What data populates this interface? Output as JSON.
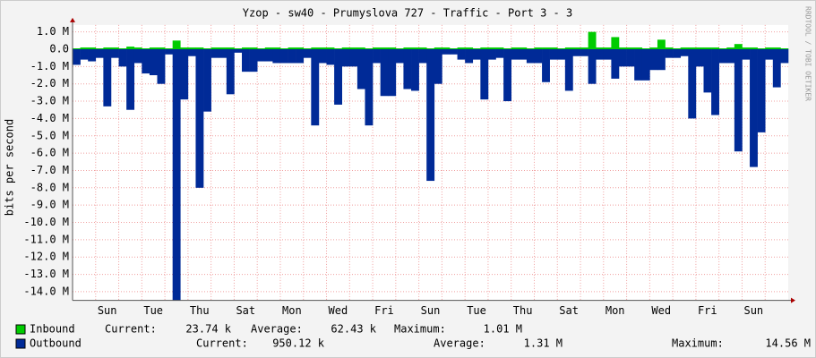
{
  "chart_data": {
    "type": "area",
    "title": "Yzop - sw40 - Prumyslova 727 - Traffic - Port  3 - 3",
    "y_label": "bits per second",
    "side_label": "RRDTOOL / TOBI OETIKER",
    "categories": [
      null,
      null,
      null,
      null,
      "Sun",
      null,
      null,
      null,
      null,
      null,
      "Tue",
      null,
      null,
      null,
      null,
      null,
      "Thu",
      null,
      null,
      null,
      null,
      null,
      "Sat",
      null,
      null,
      null,
      null,
      null,
      "Mon",
      null,
      null,
      null,
      null,
      null,
      "Wed",
      null,
      null,
      null,
      null,
      null,
      "Fri",
      null,
      null,
      null,
      null,
      null,
      "Sun",
      null,
      null,
      null,
      null,
      null,
      "Tue",
      null,
      null,
      null,
      null,
      null,
      "Thu",
      null,
      null,
      null,
      null,
      null,
      "Sat",
      null,
      null,
      null,
      null,
      null,
      "Mon",
      null,
      null,
      null,
      null,
      null,
      "Wed",
      null,
      null,
      null,
      null,
      null,
      "Fri",
      null,
      null,
      null,
      null,
      null,
      "Sun",
      null,
      null,
      null,
      null
    ],
    "series": [
      {
        "name": "Inbound",
        "color": "#00cc00",
        "stats": [
          {
            "label": "Current:",
            "value": "23.74 k"
          },
          {
            "label": "Average:",
            "value": "62.43 k"
          },
          {
            "label": "Maximum:",
            "value": "1.01 M"
          }
        ],
        "values": [
          0.05,
          0.1,
          0.1,
          0.05,
          0.1,
          0.1,
          0.05,
          0.15,
          0.1,
          0.05,
          0.1,
          0.1,
          0.05,
          0.5,
          0.1,
          0.1,
          0.1,
          0.05,
          0.1,
          0.1,
          0.1,
          0.05,
          0.1,
          0.1,
          0.05,
          0.1,
          0.1,
          0.05,
          0.1,
          0.1,
          0.05,
          0.1,
          0.1,
          0.1,
          0.05,
          0.1,
          0.1,
          0.1,
          0.05,
          0.1,
          0.1,
          0.1,
          0.05,
          0.1,
          0.1,
          0.1,
          0.05,
          0.1,
          0.1,
          0.05,
          0.1,
          0.1,
          0.05,
          0.1,
          0.1,
          0.1,
          0.05,
          0.1,
          0.1,
          0.05,
          0.1,
          0.1,
          0.1,
          0.05,
          0.1,
          0.1,
          0.1,
          1.0,
          0.1,
          0.1,
          0.7,
          0.1,
          0.1,
          0.1,
          0.05,
          0.1,
          0.55,
          0.1,
          0.05,
          0.1,
          0.1,
          0.1,
          0.1,
          0.1,
          0.05,
          0.1,
          0.3,
          0.1,
          0.1,
          0.05,
          0.1,
          0.1,
          0.05
        ]
      },
      {
        "name": "Outbound",
        "color": "#002a97",
        "stats": [
          {
            "label": "Current:",
            "value": "950.12 k"
          },
          {
            "label": "Average:",
            "value": "1.31 M"
          },
          {
            "label": "Maximum:",
            "value": "14.56 M"
          }
        ],
        "values": [
          -0.9,
          -0.6,
          -0.7,
          -0.5,
          -3.3,
          -0.5,
          -1.0,
          -3.5,
          -0.8,
          -1.4,
          -1.5,
          -2.0,
          -0.3,
          -14.5,
          -2.9,
          -0.4,
          -8.0,
          -3.6,
          -0.5,
          -0.5,
          -2.6,
          -0.2,
          -1.3,
          -1.3,
          -0.7,
          -0.7,
          -0.8,
          -0.8,
          -0.8,
          -0.8,
          -0.5,
          -4.4,
          -0.8,
          -0.9,
          -3.2,
          -1.0,
          -1.0,
          -2.3,
          -4.4,
          -0.8,
          -2.7,
          -2.7,
          -0.8,
          -2.3,
          -2.4,
          -0.8,
          -7.6,
          -2.0,
          -0.3,
          -0.3,
          -0.6,
          -0.8,
          -0.6,
          -2.9,
          -0.6,
          -0.5,
          -3.0,
          -0.6,
          -0.6,
          -0.8,
          -0.8,
          -1.9,
          -0.6,
          -0.6,
          -2.4,
          -0.4,
          -0.4,
          -2.0,
          -0.6,
          -0.6,
          -1.7,
          -1.0,
          -1.0,
          -1.8,
          -1.8,
          -1.2,
          -1.2,
          -0.5,
          -0.5,
          -0.4,
          -4.0,
          -1.0,
          -2.5,
          -3.8,
          -0.8,
          -0.8,
          -5.9,
          -0.6,
          -6.8,
          -4.8,
          -0.6,
          -2.2,
          -0.8
        ]
      }
    ],
    "ylim": [
      -14.5,
      1.4
    ],
    "yticks": [
      {
        "value": 1,
        "label": "1.0 M"
      },
      {
        "value": 0,
        "label": "0.0"
      },
      {
        "value": -1,
        "label": "-1.0 M"
      },
      {
        "value": -2,
        "label": "-2.0 M"
      },
      {
        "value": -3,
        "label": "-3.0 M"
      },
      {
        "value": -4,
        "label": "-4.0 M"
      },
      {
        "value": -5,
        "label": "-5.0 M"
      },
      {
        "value": -6,
        "label": "-6.0 M"
      },
      {
        "value": -7,
        "label": "-7.0 M"
      },
      {
        "value": -8,
        "label": "-8.0 M"
      },
      {
        "value": -9,
        "label": "-9.0 M"
      },
      {
        "value": -10,
        "label": "-10.0 M"
      },
      {
        "value": -11,
        "label": "-11.0 M"
      },
      {
        "value": -12,
        "label": "-12.0 M"
      },
      {
        "value": -13,
        "label": "-13.0 M"
      },
      {
        "value": -14,
        "label": "-14.0 M"
      }
    ],
    "grid": true
  }
}
